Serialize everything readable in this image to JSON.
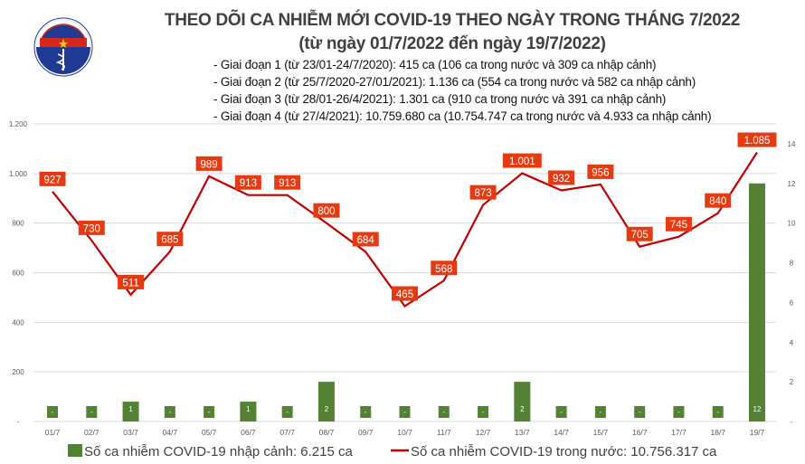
{
  "logo": {
    "top_text": "BỘ Y TẾ",
    "bottom_text": "MINISTRY OF HEALTH"
  },
  "title": "THEO DÕI CA NHIỄM MỚI COVID-19 THEO NGÀY TRONG THÁNG 7/2022",
  "subtitle": "(từ ngày 01/7/2022 đến ngày 19/7/2022)",
  "notes": [
    "- Giai đoạn 1 (từ 23/01-24/7/2020): 415 ca (106 ca trong nước và 309 ca nhập cảnh)",
    "- Giai đoạn 2 (từ 25/7/2020-27/01/2021): 1.136 ca (554 ca trong nước và 582 ca nhập cảnh)",
    "- Giai đoạn 3 (từ 28/01-26/4/2021): 1.301 ca (910 ca trong nước và 391 ca nhập cảnh)",
    "- Giai đoạn 4 (từ 27/4/2021): 10.759.680 ca (10.754.747 ca trong nước và 4.933 ca nhập cảnh)"
  ],
  "chart_data": {
    "type": "bar+line",
    "categories": [
      "01/7",
      "02/7",
      "03/7",
      "04/7",
      "05/7",
      "06/7",
      "07/7",
      "08/7",
      "09/7",
      "10/7",
      "11/7",
      "12/7",
      "13/7",
      "14/7",
      "15/7",
      "16/7",
      "17/7",
      "18/7",
      "19/7"
    ],
    "series": [
      {
        "name": "Số ca nhiễm COVID-19 nhập cảnh: 6.215 ca",
        "type": "bar",
        "axis": "right",
        "color": "#548235",
        "values": [
          0,
          0,
          1,
          0,
          0,
          1,
          0,
          2,
          0,
          0,
          0,
          0,
          2,
          0,
          0,
          0,
          0,
          0,
          12
        ]
      },
      {
        "name": "Số ca nhiễm COVID-19 trong nước: 10.756.317 ca",
        "type": "line",
        "axis": "left",
        "color": "#c00000",
        "label_color": "#e63b12",
        "values": [
          927,
          730,
          511,
          685,
          989,
          913,
          913,
          800,
          684,
          465,
          568,
          873,
          1001,
          932,
          956,
          705,
          745,
          840,
          1085
        ]
      }
    ],
    "left_axis": {
      "range": [
        0,
        1200
      ],
      "ticks": [
        "-",
        "200",
        "400",
        "600",
        "800",
        "1.000",
        "1.200"
      ]
    },
    "right_axis": {
      "range": [
        0,
        15
      ],
      "ticks": [
        "-",
        "2",
        "4",
        "6",
        "8",
        "10",
        "12",
        "14"
      ]
    },
    "grid": true,
    "legend_placement": "bottom"
  }
}
